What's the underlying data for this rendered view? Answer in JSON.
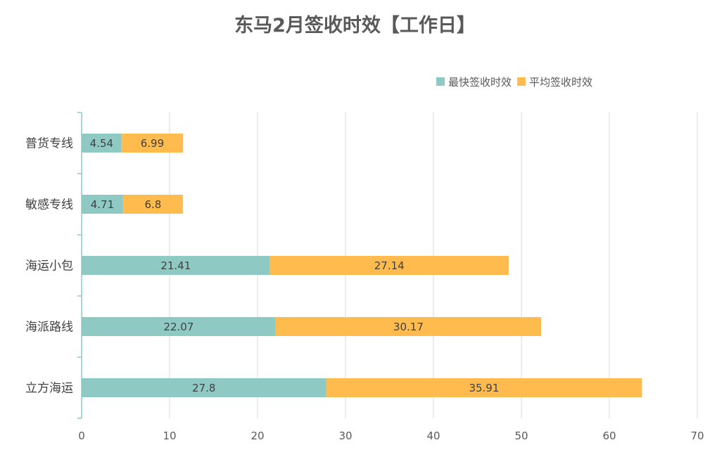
{
  "chart_data": {
    "type": "bar",
    "orientation": "horizontal",
    "stacked": true,
    "title": "东马2月签收时效【工作日】",
    "categories": [
      "普货专线",
      "敏感专线",
      "海运小包",
      "海派路线",
      "立方海运"
    ],
    "series": [
      {
        "name": "最快签收时效",
        "color": "#8FC9C4",
        "values": [
          4.54,
          4.71,
          21.41,
          22.07,
          27.8
        ],
        "labels": [
          "4.54",
          "4.71",
          "21.41",
          "22.07",
          "27.8"
        ]
      },
      {
        "name": "平均签收时效",
        "color": "#FFBB4D",
        "values": [
          6.99,
          6.8,
          27.14,
          30.17,
          35.91
        ],
        "labels": [
          "6.99",
          "6.8",
          "27.14",
          "30.17",
          "35.91"
        ]
      }
    ],
    "xlim": [
      0,
      70
    ],
    "xticks": [
      0,
      10,
      20,
      30,
      40,
      50,
      60,
      70
    ],
    "xlabel": "",
    "ylabel": "",
    "grid": "vertical",
    "legend_position": "top-right"
  }
}
